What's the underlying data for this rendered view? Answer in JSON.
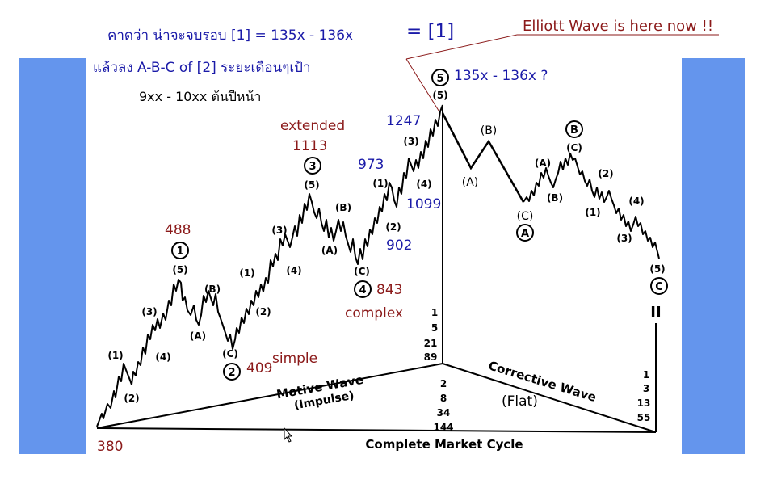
{
  "header": {
    "forecast_line1": "คาดว่า น่าจะจบรอบ [1] = 135x - 136x",
    "equals_label": "= [1]",
    "forecast_line2": "แล้วลง A-B-C of [2] ระยะเดือนๆเป้า",
    "target_range": "9xx - 10xx ต้นปีหน้า",
    "callout": "Elliott Wave is here now !!"
  },
  "colors": {
    "accent_blue": "#1a1aa8",
    "maroon": "#8b1a1a",
    "side_band": "#6495ed"
  },
  "annotations": {
    "peak_target": "135x - 136x ?",
    "v1247": "1247",
    "v1099": "1099",
    "v973": "973",
    "v902": "902",
    "v843": "843",
    "complex": "complex",
    "extended": "extended",
    "v1113": "1113",
    "v488": "488",
    "v409": "409",
    "simple": "simple",
    "v380": "380",
    "flat": "(Flat)"
  },
  "new_path_labels": {
    "a": "(A)",
    "b": "(B)",
    "c": "(C)"
  },
  "wave_labels": {
    "circ1": "1",
    "circ2": "2",
    "circ3": "3",
    "circ4": "4",
    "circ5": "5",
    "circA": "A",
    "circB": "B",
    "circC": "C",
    "p1": "(1)",
    "p2": "(2)",
    "p3": "(3)",
    "p4": "(4)",
    "p5": "(5)",
    "pA": "(A)",
    "pB": "(B)",
    "pC": "(C)",
    "ii": "II"
  },
  "cycle": {
    "motive_wave": "Motive Wave",
    "impulse": "(Impulse)",
    "corrective_wave": "Corrective Wave",
    "complete_cycle": "Complete Market Cycle",
    "center_upper": [
      "1",
      "5",
      "21",
      "89"
    ],
    "center_lower": [
      "2",
      "8",
      "34",
      "144"
    ],
    "right_stack": [
      "1",
      "3",
      "13",
      "55"
    ]
  }
}
